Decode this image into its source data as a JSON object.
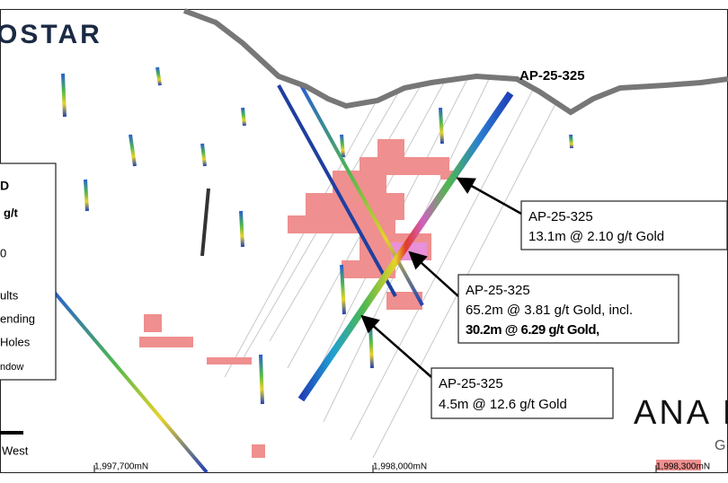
{
  "logo": "OSTAR",
  "hole_label": "AP-25-325",
  "legend": {
    "lines": [
      "D",
      "g/t",
      "0",
      "ults",
      "ending",
      "Holes",
      "ndow"
    ]
  },
  "callouts": [
    {
      "title": "AP-25-325",
      "lines": [
        "13.1m @ 2.10 g/t Gold"
      ]
    },
    {
      "title": "AP-25-325",
      "lines": [
        "65.2m @ 3.81 g/t Gold, incl.",
        "30.2m @ 6.29 g/t Gold,"
      ]
    },
    {
      "title": "AP-25-325",
      "lines": [
        "4.5m @ 12.6 g/t Gold"
      ]
    }
  ],
  "scale_label": "West",
  "northings": [
    "1,997,700mN",
    "1,998,000mN",
    "1,998,300mN"
  ],
  "company": "ANA I",
  "company_sub": "G"
}
